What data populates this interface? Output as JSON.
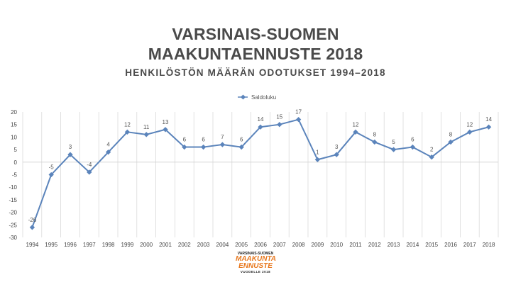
{
  "header": {
    "title_line1": "VARSINAIS-SUOMEN",
    "title_line2": "MAAKUNTAENNUSTE 2018",
    "subtitle": "HENKILÖSTÖN MÄÄRÄN ODOTUKSET 1994–2018"
  },
  "logo": {
    "line1": "VARSINAIS-SUOMEN",
    "line2": "MAAKUNTA",
    "line3": "ENNUSTE",
    "line4": "VUODELLE 2018"
  },
  "chart_data": {
    "type": "line",
    "title": "",
    "xlabel": "",
    "ylabel": "",
    "x": [
      "1994",
      "1995",
      "1996",
      "1997",
      "1998",
      "1999",
      "2000",
      "2001",
      "2002",
      "2003",
      "2004",
      "2005",
      "2006",
      "2007",
      "2008",
      "2009",
      "2010",
      "2011",
      "2012",
      "2013",
      "2014",
      "2015",
      "2016",
      "2017",
      "2018"
    ],
    "series": [
      {
        "name": "Saldoluku",
        "color": "#5b84bb",
        "values": [
          -26,
          -5,
          3,
          -4,
          4,
          12,
          11,
          13,
          6,
          6,
          7,
          6,
          14,
          15,
          17,
          1,
          3,
          12,
          8,
          5,
          6,
          2,
          8,
          12,
          14
        ]
      }
    ],
    "ylim": [
      -30,
      20
    ],
    "yticks": [
      20,
      15,
      10,
      5,
      0,
      -5,
      -10,
      -15,
      -20,
      -25,
      -30
    ],
    "grid": "vertical",
    "legend": "top-center"
  }
}
